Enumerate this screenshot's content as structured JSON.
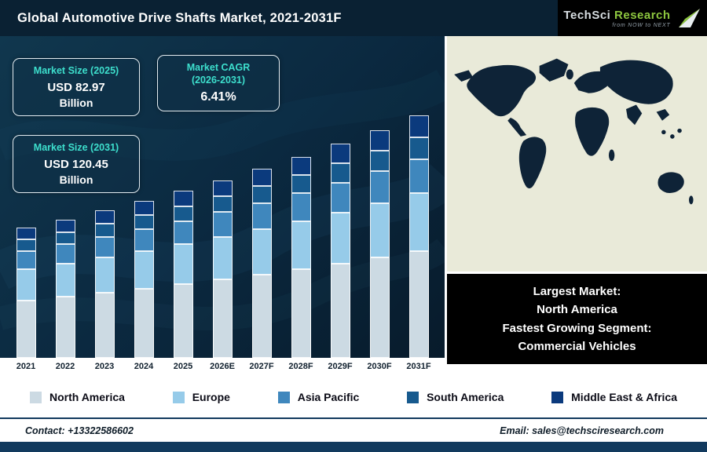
{
  "header": {
    "title": "Global Automotive Drive Shafts Market, 2021-2031F",
    "logo": {
      "brand_primary": "TechSci",
      "brand_secondary": "Research",
      "tagline": "from NOW to NEXT"
    }
  },
  "stats": {
    "size_2025": {
      "label": "Market Size (2025)",
      "value": "USD 82.97",
      "unit": "Billion"
    },
    "cagr": {
      "label_line1": "Market CAGR",
      "label_line2": "(2026-2031)",
      "value": "6.41%"
    },
    "size_2031": {
      "label": "Market Size (2031)",
      "value": "USD 120.45",
      "unit": "Billion"
    }
  },
  "chart_data": {
    "type": "bar",
    "stacked": true,
    "title": "Global Automotive Drive Shafts Market, 2021-2031F",
    "unit": "USD Billion",
    "categories": [
      "2021",
      "2022",
      "2023",
      "2024",
      "2025",
      "2026E",
      "2027F",
      "2028F",
      "2029F",
      "2030F",
      "2031F"
    ],
    "series": [
      {
        "name": "North America",
        "color": "#ccdae3",
        "values": [
          28.45,
          30.28,
          32.22,
          34.28,
          36.51,
          38.85,
          41.34,
          43.99,
          46.81,
          49.81,
          53.0
        ]
      },
      {
        "name": "Europe",
        "color": "#96cbe9",
        "values": [
          15.52,
          16.51,
          17.57,
          18.7,
          19.91,
          21.19,
          22.55,
          23.99,
          25.53,
          27.17,
          28.91
        ]
      },
      {
        "name": "Asia Pacific",
        "color": "#3f87bd",
        "values": [
          9.05,
          9.63,
          10.25,
          10.91,
          11.62,
          12.36,
          13.15,
          14.0,
          14.89,
          15.85,
          16.86
        ]
      },
      {
        "name": "South America",
        "color": "#175a8e",
        "values": [
          5.82,
          6.19,
          6.59,
          7.01,
          7.47,
          7.95,
          8.46,
          9.0,
          9.57,
          10.19,
          10.84
        ]
      },
      {
        "name": "Middle East & Africa",
        "color": "#0b3a7d",
        "values": [
          5.82,
          6.19,
          6.59,
          7.01,
          7.47,
          7.95,
          8.46,
          9.0,
          9.57,
          10.19,
          10.84
        ]
      }
    ],
    "totals": [
      64.66,
      68.81,
      73.22,
      77.92,
      82.97,
      88.29,
      93.95,
      99.97,
      106.38,
      113.2,
      120.45
    ],
    "ylim": [
      0,
      125
    ],
    "grid": false,
    "legend_position": "bottom"
  },
  "highlight": {
    "line1": "Largest Market:",
    "line2": "North America",
    "line3": "Fastest Growing Segment:",
    "line4": "Commercial Vehicles"
  },
  "footer": {
    "contact": "Contact: +13322586602",
    "email": "Email: sales@techsciresearch.com"
  },
  "colors": {
    "accent_cyan": "#3ddfcd",
    "header_bg": "#0a2133",
    "bottom_bar": "#123a5e",
    "map_land": "#0e2337",
    "map_ocean": "#e9ead9",
    "logo_green": "#8dc63f",
    "highlight_bg": "#000000"
  }
}
